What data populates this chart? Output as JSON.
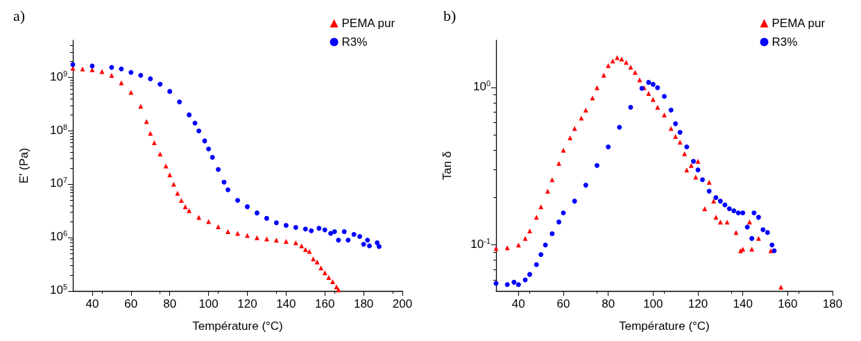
{
  "chart_data": [
    {
      "type": "scatter",
      "title": "a)",
      "xlabel": "Température (°C)",
      "ylabel": "E' (Pa)",
      "log": "y",
      "grid": false,
      "legend": "top right",
      "xlim": [
        30,
        200
      ],
      "xticks": [
        40,
        60,
        80,
        100,
        120,
        140,
        160,
        180,
        200
      ],
      "ylim": [
        100000,
        5000000000
      ],
      "yticks": [
        {
          "value": 100000,
          "label": "10$^{5}$"
        },
        {
          "value": 1000000,
          "label": "10$^{6}$"
        },
        {
          "value": 10000000,
          "label": "10$^{7}$"
        },
        {
          "value": 100000000,
          "label": "10$^{8}$"
        },
        {
          "value": 1000000000,
          "label": "10$^{9}$"
        }
      ],
      "series": [
        {
          "name": "PEMA pur",
          "color": "#ff0000",
          "marker": "triangle",
          "x": [
            30,
            35,
            40,
            45,
            50,
            55,
            60,
            65,
            68,
            70,
            72,
            75,
            78,
            80,
            82,
            84,
            86,
            88,
            90,
            95,
            100,
            105,
            110,
            115,
            120,
            125,
            130,
            135,
            140,
            145,
            148,
            150,
            152,
            154,
            156,
            158,
            160,
            162,
            164,
            166,
            167
          ],
          "values": [
            1500000000,
            1450000000,
            1400000000,
            1300000000,
            1100000000,
            800000000,
            530000000,
            290000000,
            150000000,
            90000000,
            60000000,
            37000000,
            22000000,
            15000000,
            10000000,
            6800000,
            5000000,
            3800000,
            3200000,
            2400000,
            2000000,
            1600000,
            1300000,
            1200000,
            1100000,
            1000000,
            950000,
            900000,
            850000,
            800000,
            700000,
            600000,
            550000,
            400000,
            350000,
            270000,
            220000,
            180000,
            150000,
            120000,
            105000
          ]
        },
        {
          "name": "R3%",
          "color": "#0000ff",
          "marker": "circle",
          "x": [
            30,
            40,
            50,
            55,
            60,
            65,
            70,
            75,
            80,
            85,
            90,
            93,
            95,
            98,
            100,
            102,
            105,
            108,
            110,
            115,
            120,
            125,
            130,
            135,
            140,
            145,
            150,
            153,
            157,
            160,
            163,
            165,
            167,
            170,
            172,
            175,
            178,
            180,
            182,
            183,
            187,
            188
          ],
          "values": [
            1750000000,
            1650000000,
            1550000000,
            1450000000,
            1250000000,
            1100000000,
            950000000,
            750000000,
            550000000,
            350000000,
            200000000,
            140000000,
            100000000,
            65000000,
            46000000,
            32000000,
            19000000,
            11000000,
            7900000,
            5000000,
            3800000,
            2900000,
            2300000,
            1900000,
            1700000,
            1550000,
            1450000,
            1350000,
            1500000,
            1400000,
            1200000,
            1300000,
            900000,
            1300000,
            900000,
            1150000,
            1050000,
            750000,
            900000,
            700000,
            800000,
            680000
          ]
        }
      ]
    },
    {
      "type": "scatter",
      "title": "b)",
      "xlabel": "Température (°C)",
      "ylabel": "Tan δ",
      "log": "y",
      "grid": false,
      "legend": "top right",
      "xlim": [
        30,
        180
      ],
      "xticks": [
        40,
        60,
        80,
        100,
        120,
        140,
        160,
        180
      ],
      "ylim": [
        0.051,
        2
      ],
      "yticks": [
        {
          "value": 0.1,
          "label": "10$^{-1}$"
        },
        {
          "value": 1,
          "label": "10$^{0}$"
        }
      ],
      "series": [
        {
          "name": "PEMA pur",
          "color": "#ff0000",
          "marker": "triangle",
          "x": [
            30,
            35,
            40,
            43,
            45,
            48,
            50,
            53,
            55,
            58,
            60,
            63,
            65,
            68,
            70,
            73,
            75,
            78,
            80,
            82,
            84,
            86,
            88,
            90,
            92,
            94,
            96,
            98,
            100,
            102,
            105,
            108,
            110,
            112,
            114,
            115,
            117,
            119,
            120,
            123,
            125,
            127,
            128,
            130,
            133,
            137,
            139,
            140,
            143,
            144,
            147,
            152.5,
            157
          ],
          "values": [
            0.095,
            0.096,
            0.1,
            0.11,
            0.123,
            0.15,
            0.175,
            0.22,
            0.26,
            0.33,
            0.4,
            0.48,
            0.55,
            0.64,
            0.72,
            0.86,
            1.0,
            1.2,
            1.38,
            1.48,
            1.55,
            1.52,
            1.45,
            1.35,
            1.25,
            1.12,
            1.0,
            0.92,
            0.84,
            0.75,
            0.67,
            0.55,
            0.49,
            0.45,
            0.38,
            0.3,
            0.32,
            0.27,
            0.34,
            0.17,
            0.25,
            0.19,
            0.15,
            0.14,
            0.14,
            0.12,
            0.092,
            0.094,
            0.14,
            0.094,
            0.11,
            0.092,
            0.054
          ]
        },
        {
          "name": "R3%",
          "color": "#0000ff",
          "marker": "circle",
          "x": [
            30,
            35,
            38,
            40,
            43,
            45,
            48,
            50,
            52,
            55,
            58,
            60,
            65,
            70,
            75,
            80,
            85,
            90,
            95,
            98,
            100,
            102,
            105,
            108,
            110,
            112,
            115,
            118,
            120,
            122,
            125,
            128,
            130,
            132,
            134,
            136,
            138,
            140,
            142,
            144,
            145,
            147,
            149,
            151,
            153,
            154
          ],
          "values": [
            0.057,
            0.056,
            0.058,
            0.056,
            0.06,
            0.065,
            0.075,
            0.087,
            0.1,
            0.118,
            0.14,
            0.16,
            0.19,
            0.24,
            0.32,
            0.42,
            0.56,
            0.75,
            0.99,
            1.08,
            1.05,
            1.0,
            0.88,
            0.72,
            0.59,
            0.52,
            0.42,
            0.34,
            0.3,
            0.26,
            0.22,
            0.2,
            0.19,
            0.18,
            0.17,
            0.165,
            0.16,
            0.16,
            0.13,
            0.11,
            0.16,
            0.15,
            0.125,
            0.12,
            0.1,
            0.092
          ]
        }
      ]
    }
  ]
}
